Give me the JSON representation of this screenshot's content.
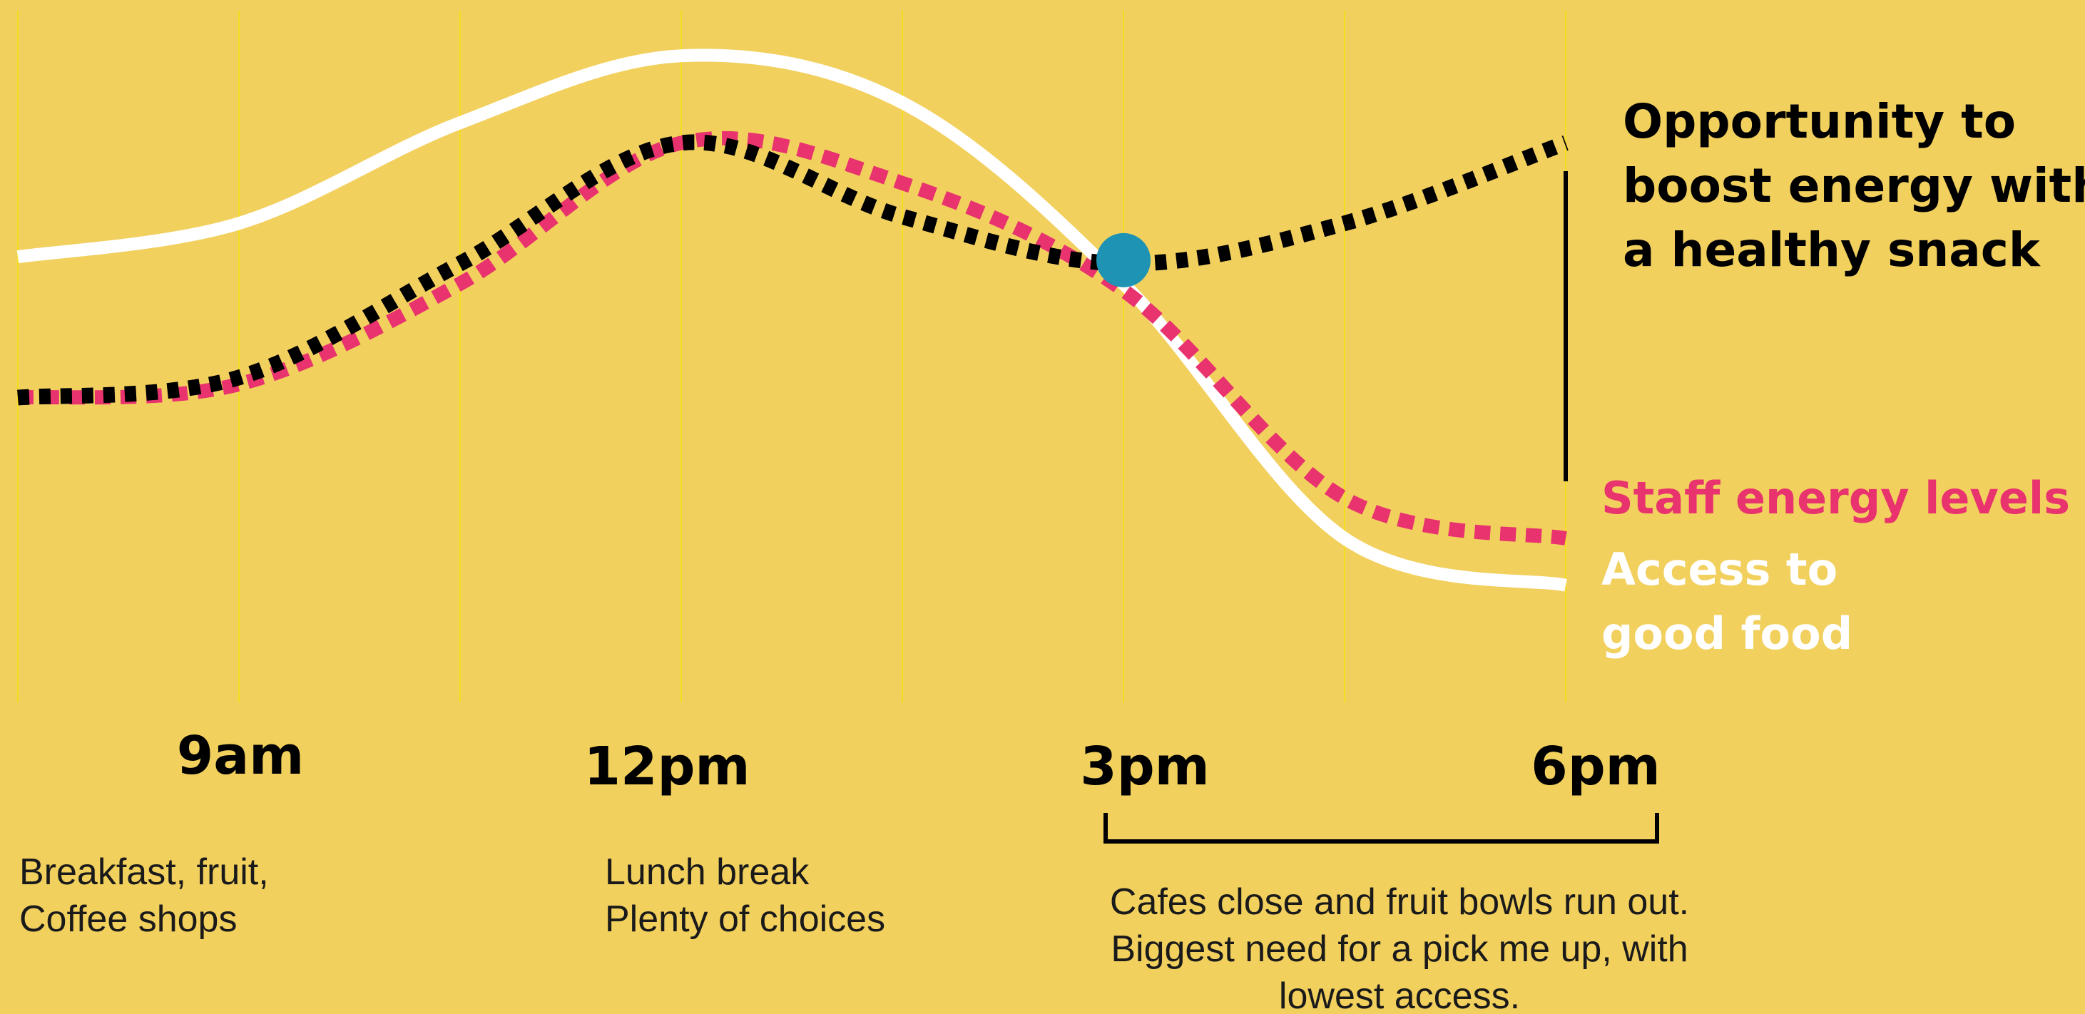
{
  "colors": {
    "background": "#F2D05E",
    "grid": "#F5DE1F",
    "access": "#FFFFFF",
    "energy": "#E8336E",
    "opportunity": "#000000",
    "marker": "#1E93B4",
    "text": "#000000"
  },
  "chart_data": {
    "type": "line",
    "x_unit": "hour of day",
    "xlim": [
      7.5,
      18
    ],
    "ylim": [
      0,
      1
    ],
    "grid": "vertical",
    "x_ticks": [
      {
        "label": "9am",
        "x": 9
      },
      {
        "label": "12pm",
        "x": 12
      },
      {
        "label": "3pm",
        "x": 15
      },
      {
        "label": "6pm",
        "x": 18
      }
    ],
    "series": [
      {
        "name_lines": [
          "Access to",
          "good food"
        ],
        "style": "solid",
        "color": "#FFFFFF",
        "x": [
          7.5,
          9,
          10.5,
          12,
          13.5,
          15,
          16.5,
          18
        ],
        "y": [
          0.67,
          0.72,
          0.87,
          0.97,
          0.9,
          0.63,
          0.25,
          0.18
        ]
      },
      {
        "name_lines": [
          "Staff energy levels"
        ],
        "style": "dashed",
        "color": "#E8336E",
        "x": [
          7.5,
          9,
          10.5,
          12,
          13.5,
          15,
          16.5,
          18
        ],
        "y": [
          0.46,
          0.48,
          0.63,
          0.84,
          0.78,
          0.62,
          0.31,
          0.25
        ]
      },
      {
        "name_lines": [
          "Opportunity to",
          "boost energy with",
          "a healthy snack"
        ],
        "style": "dotted",
        "color": "#000000",
        "x": [
          7.5,
          9,
          10.5,
          12,
          13.5,
          15,
          16.5,
          18
        ],
        "y": [
          0.46,
          0.49,
          0.66,
          0.84,
          0.73,
          0.66,
          0.72,
          0.84
        ]
      }
    ],
    "marker": {
      "x": 15,
      "y": 0.665
    },
    "range_bracket": {
      "from": 15,
      "to": 18
    },
    "annotations": [
      {
        "x": 9,
        "lines": [
          "Breakfast, fruit,",
          "Coffee shops"
        ]
      },
      {
        "x": 12,
        "lines": [
          "Lunch break",
          "Plenty of choices"
        ]
      },
      {
        "x": 16.5,
        "lines": [
          "Cafes close and fruit bowls run out.",
          "Biggest need for a pick me up, with",
          "lowest access."
        ]
      }
    ]
  }
}
